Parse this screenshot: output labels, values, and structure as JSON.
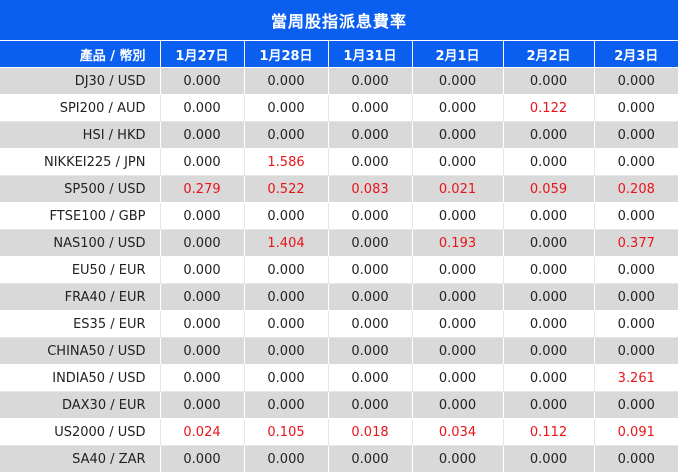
{
  "title": "當周股指派息費率",
  "columns": [
    "產品 / 幣別",
    "1月27日",
    "1月28日",
    "1月31日",
    "2月1日",
    "2月2日",
    "2月3日"
  ],
  "rows": [
    {
      "symbol": "DJ30 / USD",
      "values": [
        "0.000",
        "0.000",
        "0.000",
        "0.000",
        "0.000",
        "0.000"
      ]
    },
    {
      "symbol": "SPI200 / AUD",
      "values": [
        "0.000",
        "0.000",
        "0.000",
        "0.000",
        "0.122",
        "0.000"
      ]
    },
    {
      "symbol": "HSI / HKD",
      "values": [
        "0.000",
        "0.000",
        "0.000",
        "0.000",
        "0.000",
        "0.000"
      ]
    },
    {
      "symbol": "NIKKEI225 / JPN",
      "values": [
        "0.000",
        "1.586",
        "0.000",
        "0.000",
        "0.000",
        "0.000"
      ]
    },
    {
      "symbol": "SP500 / USD",
      "values": [
        "0.279",
        "0.522",
        "0.083",
        "0.021",
        "0.059",
        "0.208"
      ]
    },
    {
      "symbol": "FTSE100 / GBP",
      "values": [
        "0.000",
        "0.000",
        "0.000",
        "0.000",
        "0.000",
        "0.000"
      ]
    },
    {
      "symbol": "NAS100 / USD",
      "values": [
        "0.000",
        "1.404",
        "0.000",
        "0.193",
        "0.000",
        "0.377"
      ]
    },
    {
      "symbol": "EU50 / EUR",
      "values": [
        "0.000",
        "0.000",
        "0.000",
        "0.000",
        "0.000",
        "0.000"
      ]
    },
    {
      "symbol": "FRA40 / EUR",
      "values": [
        "0.000",
        "0.000",
        "0.000",
        "0.000",
        "0.000",
        "0.000"
      ]
    },
    {
      "symbol": "ES35 / EUR",
      "values": [
        "0.000",
        "0.000",
        "0.000",
        "0.000",
        "0.000",
        "0.000"
      ]
    },
    {
      "symbol": "CHINA50 / USD",
      "values": [
        "0.000",
        "0.000",
        "0.000",
        "0.000",
        "0.000",
        "0.000"
      ]
    },
    {
      "symbol": "INDIA50 / USD",
      "values": [
        "0.000",
        "0.000",
        "0.000",
        "0.000",
        "0.000",
        "3.261"
      ]
    },
    {
      "symbol": "DAX30 / EUR",
      "values": [
        "0.000",
        "0.000",
        "0.000",
        "0.000",
        "0.000",
        "0.000"
      ]
    },
    {
      "symbol": "US2000 / USD",
      "values": [
        "0.024",
        "0.105",
        "0.018",
        "0.034",
        "0.112",
        "0.091"
      ]
    },
    {
      "symbol": "SA40 / ZAR",
      "values": [
        "0.000",
        "0.000",
        "0.000",
        "0.000",
        "0.000",
        "0.000"
      ]
    }
  ],
  "colors": {
    "header_bg": "#0a5ff0",
    "header_text": "#ffffff",
    "row_alt_bg": "#d9d9d9",
    "nonzero_value": "#e8141a",
    "zero_value": "#222222"
  }
}
